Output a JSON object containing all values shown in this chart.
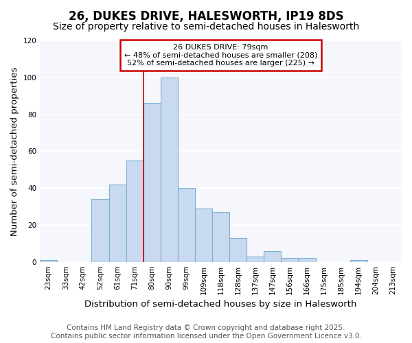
{
  "title": "26, DUKES DRIVE, HALESWORTH, IP19 8DS",
  "subtitle": "Size of property relative to semi-detached houses in Halesworth",
  "xlabel": "Distribution of semi-detached houses by size in Halesworth",
  "ylabel": "Number of semi-detached properties",
  "categories": [
    "23sqm",
    "33sqm",
    "42sqm",
    "52sqm",
    "61sqm",
    "71sqm",
    "80sqm",
    "90sqm",
    "99sqm",
    "109sqm",
    "118sqm",
    "128sqm",
    "137sqm",
    "147sqm",
    "156sqm",
    "166sqm",
    "175sqm",
    "185sqm",
    "194sqm",
    "204sqm",
    "213sqm"
  ],
  "values": [
    1,
    0,
    0,
    34,
    42,
    55,
    86,
    100,
    40,
    29,
    27,
    13,
    3,
    6,
    2,
    2,
    0,
    0,
    1,
    0,
    0
  ],
  "bar_color": "#c9d9ef",
  "bar_edge_color": "#7bafd4",
  "red_line_x": 6,
  "annotation_title": "26 DUKES DRIVE: 79sqm",
  "annotation_line1": "← 48% of semi-detached houses are smaller (208)",
  "annotation_line2": "52% of semi-detached houses are larger (225) →",
  "annotation_box_facecolor": "#ffffff",
  "annotation_box_edgecolor": "#cc0000",
  "ylim": [
    0,
    120
  ],
  "yticks": [
    0,
    20,
    40,
    60,
    80,
    100,
    120
  ],
  "footer_line1": "Contains HM Land Registry data © Crown copyright and database right 2025.",
  "footer_line2": "Contains public sector information licensed under the Open Government Licence v3.0.",
  "background_color": "#ffffff",
  "plot_bg_color": "#f5f7fc",
  "grid_color": "#ffffff",
  "title_fontsize": 12,
  "subtitle_fontsize": 10,
  "axis_label_fontsize": 9.5,
  "tick_fontsize": 7.5,
  "annotation_fontsize": 8,
  "footer_fontsize": 7.5
}
